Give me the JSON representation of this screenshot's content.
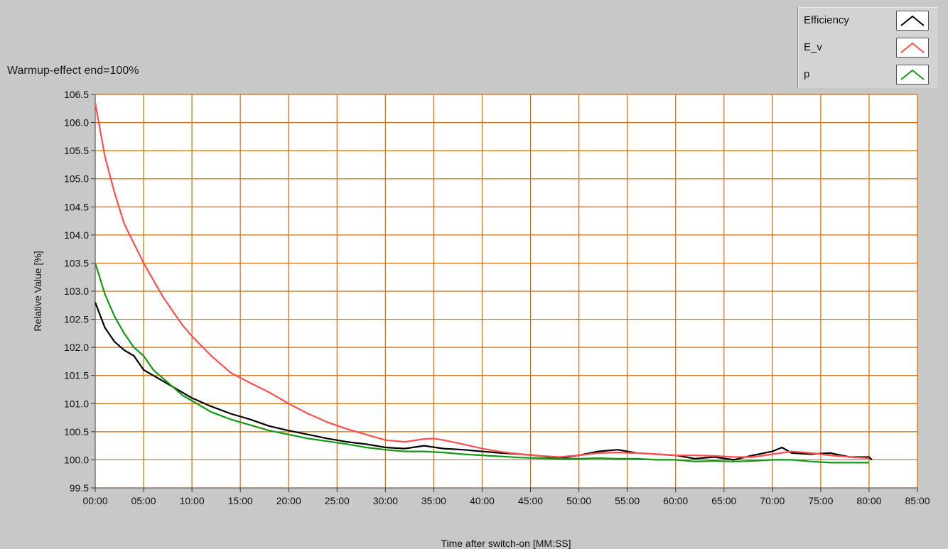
{
  "window": {
    "plot_title": "Warmup-effect end=100%"
  },
  "chart_data": {
    "type": "line",
    "title": "Warmup-effect end=100%",
    "xlabel": "Time after switch-on [MM:SS]",
    "ylabel": "Relative Value [%]",
    "xlim": [
      0,
      85
    ],
    "ylim": [
      99.5,
      106.5
    ],
    "x_unit": "minutes",
    "xticks": [
      0,
      5,
      10,
      15,
      20,
      25,
      30,
      35,
      40,
      45,
      50,
      55,
      60,
      65,
      70,
      75,
      80,
      85
    ],
    "xtick_labels": [
      "00:00",
      "05:00",
      "10:00",
      "15:00",
      "20:00",
      "25:00",
      "30:00",
      "35:00",
      "40:00",
      "45:00",
      "50:00",
      "55:00",
      "60:00",
      "65:00",
      "70:00",
      "75:00",
      "80:00",
      "85:00"
    ],
    "yticks": [
      99.5,
      100.0,
      100.5,
      101.0,
      101.5,
      102.0,
      102.5,
      103.0,
      103.5,
      104.0,
      104.5,
      105.0,
      105.5,
      106.0,
      106.5
    ],
    "ytick_labels": [
      "99.5",
      "100.0",
      "100.5",
      "101.0",
      "101.5",
      "102.0",
      "102.5",
      "103.0",
      "103.5",
      "104.0",
      "104.5",
      "105.0",
      "105.5",
      "106.0",
      "106.5"
    ],
    "grid": true,
    "grid_color": "#d46a00",
    "plot_background": "#ffffff",
    "legend_position": "top-right",
    "series": [
      {
        "name": "Efficiency",
        "color": "#000000",
        "x": [
          0,
          1,
          2,
          3,
          4,
          5,
          6,
          7,
          8,
          9,
          10,
          12,
          14,
          16,
          18,
          20,
          22,
          24,
          26,
          28,
          30,
          32,
          34,
          36,
          38,
          40,
          42,
          44,
          46,
          48,
          50,
          52,
          54,
          56,
          58,
          60,
          62,
          64,
          66,
          68,
          70,
          71,
          72,
          74,
          76,
          78,
          80,
          80.3
        ],
        "y": [
          102.8,
          102.35,
          102.1,
          101.95,
          101.85,
          101.6,
          101.5,
          101.4,
          101.3,
          101.2,
          101.1,
          100.95,
          100.82,
          100.72,
          100.6,
          100.52,
          100.45,
          100.38,
          100.32,
          100.28,
          100.22,
          100.2,
          100.25,
          100.2,
          100.18,
          100.15,
          100.12,
          100.1,
          100.07,
          100.03,
          100.08,
          100.15,
          100.18,
          100.12,
          100.1,
          100.08,
          100.02,
          100.05,
          100.0,
          100.08,
          100.15,
          100.22,
          100.12,
          100.1,
          100.12,
          100.05,
          100.05,
          100.0
        ]
      },
      {
        "name": "E_v",
        "color": "#ff4f4f",
        "x": [
          0,
          1,
          2,
          3,
          4,
          5,
          6,
          7,
          8,
          9,
          10,
          12,
          14,
          16,
          18,
          20,
          22,
          24,
          26,
          28,
          30,
          32,
          34,
          35,
          36,
          38,
          40,
          42,
          44,
          46,
          48,
          50,
          52,
          54,
          56,
          58,
          60,
          62,
          64,
          66,
          68,
          70,
          72,
          74,
          76,
          78,
          80
        ],
        "y": [
          106.35,
          105.4,
          104.75,
          104.2,
          103.85,
          103.5,
          103.2,
          102.9,
          102.65,
          102.4,
          102.2,
          101.85,
          101.55,
          101.37,
          101.2,
          101.0,
          100.82,
          100.67,
          100.55,
          100.45,
          100.35,
          100.32,
          100.37,
          100.38,
          100.35,
          100.28,
          100.2,
          100.14,
          100.1,
          100.07,
          100.05,
          100.08,
          100.12,
          100.13,
          100.12,
          100.1,
          100.08,
          100.08,
          100.07,
          100.05,
          100.05,
          100.1,
          100.15,
          100.12,
          100.08,
          100.05,
          100.03
        ]
      },
      {
        "name": "p",
        "color": "#119a11",
        "x": [
          0,
          1,
          2,
          3,
          4,
          5,
          6,
          7,
          8,
          9,
          10,
          12,
          14,
          16,
          18,
          20,
          22,
          24,
          26,
          28,
          30,
          32,
          34,
          36,
          38,
          40,
          42,
          44,
          46,
          48,
          50,
          52,
          54,
          56,
          58,
          60,
          62,
          64,
          66,
          68,
          70,
          72,
          74,
          76,
          78,
          80
        ],
        "y": [
          103.5,
          102.95,
          102.55,
          102.25,
          102.0,
          101.85,
          101.6,
          101.45,
          101.3,
          101.15,
          101.05,
          100.85,
          100.72,
          100.62,
          100.52,
          100.45,
          100.38,
          100.33,
          100.28,
          100.22,
          100.18,
          100.15,
          100.15,
          100.13,
          100.1,
          100.08,
          100.06,
          100.04,
          100.03,
          100.02,
          100.02,
          100.03,
          100.02,
          100.02,
          100.0,
          100.0,
          99.97,
          99.98,
          99.97,
          99.98,
          100.0,
          100.0,
          99.97,
          99.95,
          99.95,
          99.95
        ]
      }
    ]
  }
}
